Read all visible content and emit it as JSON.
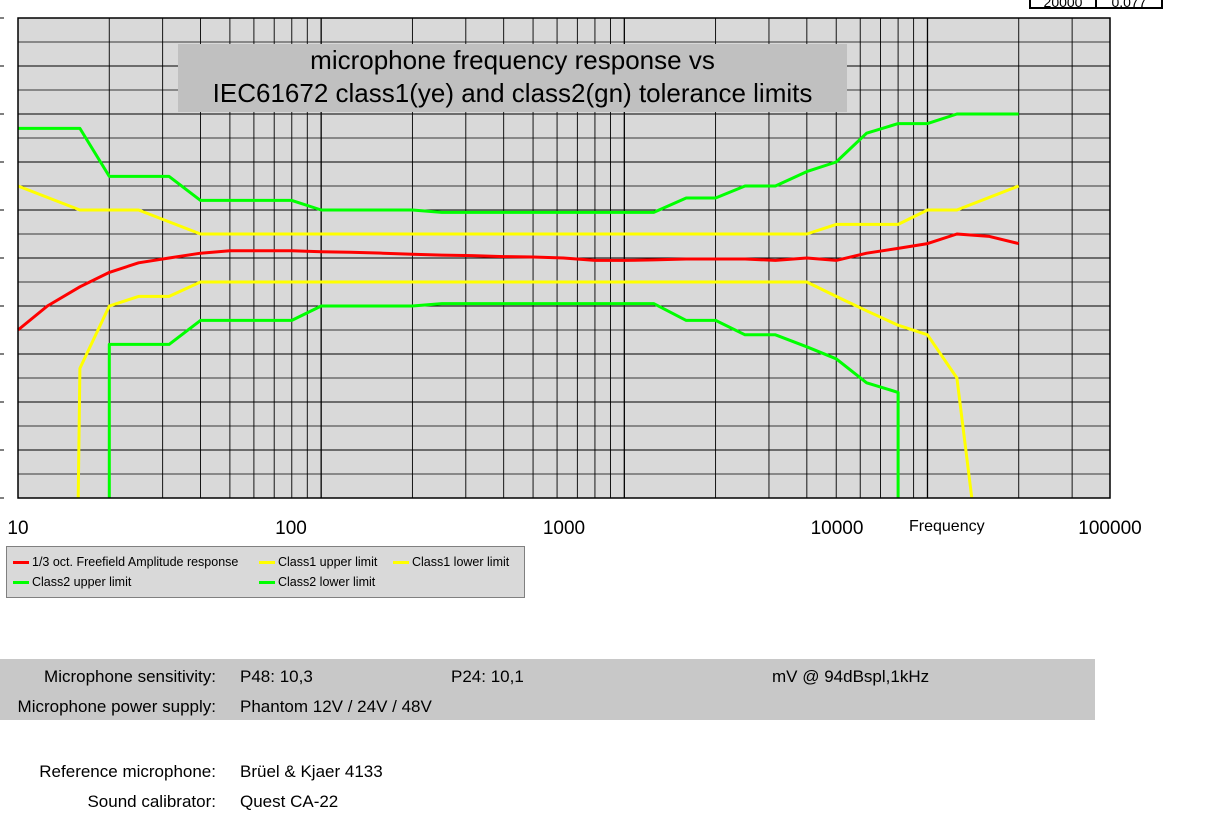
{
  "corner_table": {
    "cells": [
      "20000",
      "0,077"
    ]
  },
  "chart_data": {
    "type": "line",
    "title": "microphone frequency response vs IEC61672 class1(ye) and class2(gn) tolerance limits",
    "title_lines": [
      "microphone frequency response vs",
      "IEC61672 class1(ye) and class2(gn) tolerance limits"
    ],
    "xlabel": "Frequency",
    "x_scale": "log",
    "xlim": [
      10,
      40000
    ],
    "x_ticks": [
      "10",
      "100",
      "1000",
      "10000",
      "100000"
    ],
    "ylim": [
      -5,
      5
    ],
    "grid": true,
    "legend_position": "bottom-left",
    "colors": {
      "response": "#ff0000",
      "class1": "#ffff00",
      "class2": "#00ff00",
      "plot_bg": "#d9d9d9",
      "grid": "#000000"
    },
    "series": [
      {
        "name": "1/3 oct. Freefield Amplitude response",
        "color": "#ff0000",
        "x": [
          10,
          12.5,
          16,
          20,
          25,
          31.5,
          40,
          50,
          63,
          80,
          100,
          125,
          160,
          200,
          250,
          315,
          400,
          500,
          630,
          800,
          1000,
          1250,
          1600,
          2000,
          2500,
          3150,
          4000,
          5000,
          6300,
          8000,
          10000,
          12500,
          16000,
          20000
        ],
        "y": [
          -1.5,
          -1.0,
          -0.6,
          -0.3,
          -0.1,
          0.0,
          0.1,
          0.15,
          0.15,
          0.15,
          0.13,
          0.12,
          0.1,
          0.08,
          0.06,
          0.05,
          0.03,
          0.02,
          0.0,
          -0.05,
          -0.05,
          -0.04,
          -0.02,
          -0.02,
          -0.02,
          -0.05,
          0.0,
          -0.05,
          0.1,
          0.2,
          0.3,
          0.5,
          0.45,
          0.3
        ]
      },
      {
        "name": "Class1 upper limit",
        "color": "#ffff00",
        "x": [
          10,
          16,
          25,
          40,
          4000,
          5000,
          8000,
          10000,
          12500,
          20000
        ],
        "y": [
          1.5,
          1.0,
          1.0,
          0.5,
          0.5,
          0.7,
          0.7,
          1.0,
          1.0,
          1.5
        ]
      },
      {
        "name": "Class1 lower limit",
        "color": "#ffff00",
        "x": [
          15.8,
          16,
          20,
          25,
          31.5,
          40,
          4000,
          5000,
          6300,
          8000,
          10000,
          12500,
          14000
        ],
        "y": [
          -5,
          -2.3,
          -1.0,
          -0.8,
          -0.8,
          -0.5,
          -0.5,
          -0.8,
          -1.1,
          -1.4,
          -1.6,
          -2.5,
          -5
        ]
      },
      {
        "name": "Class2 upper limit",
        "color": "#00ff00",
        "x": [
          10,
          16,
          20,
          31.5,
          40,
          80,
          100,
          200,
          250,
          1250,
          1600,
          2000,
          2500,
          3150,
          4000,
          5000,
          6300,
          8000,
          10000,
          12500,
          20000
        ],
        "y": [
          2.7,
          2.7,
          1.7,
          1.7,
          1.2,
          1.2,
          1.0,
          1.0,
          0.95,
          0.95,
          1.25,
          1.25,
          1.5,
          1.5,
          1.8,
          2.0,
          2.6,
          2.8,
          2.8,
          3.0,
          3.0
        ]
      },
      {
        "name": "Class2 lower limit",
        "color": "#00ff00",
        "x": [
          20,
          20,
          31.5,
          40,
          80,
          100,
          200,
          250,
          1250,
          1600,
          2000,
          2500,
          3150,
          4000,
          5000,
          6300,
          8000,
          8000
        ],
        "y": [
          -5,
          -1.8,
          -1.8,
          -1.3,
          -1.3,
          -1.0,
          -1.0,
          -0.95,
          -0.95,
          -1.3,
          -1.3,
          -1.6,
          -1.6,
          -1.85,
          -2.1,
          -2.6,
          -2.8,
          -5
        ]
      }
    ]
  },
  "legend": {
    "items": [
      {
        "label": "1/3 oct. Freefield Amplitude response",
        "color": "#ff0000"
      },
      {
        "label": "Class1 upper limit",
        "color": "#ffff00"
      },
      {
        "label": "Class1 lower limit",
        "color": "#ffff00"
      },
      {
        "label": "Class2 upper limit",
        "color": "#00ff00"
      },
      {
        "label": "Class2 lower limit",
        "color": "#00ff00"
      }
    ]
  },
  "info": {
    "sensitivity_label": "Microphone sensitivity:",
    "sensitivity_p48": "P48: 10,3",
    "sensitivity_p24": "P24: 10,1",
    "sensitivity_unit": "mV @ 94dBspl,1kHz",
    "power_label": "Microphone  power supply:",
    "power_value": "Phantom 12V / 24V / 48V",
    "ref_label": "Reference microphone:",
    "ref_value": "Brüel & Kjaer 4133",
    "calibrator_label": "Sound calibrator:",
    "calibrator_value": "Quest CA-22"
  }
}
